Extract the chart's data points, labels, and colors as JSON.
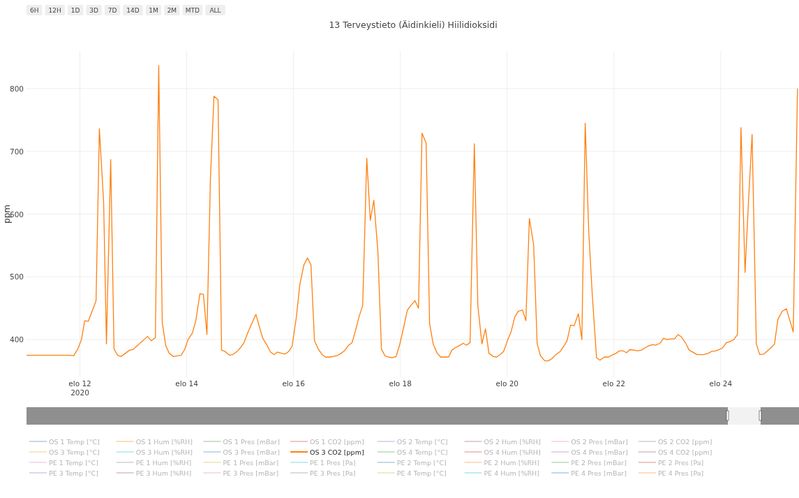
{
  "chart_data": {
    "type": "line",
    "title": "13 Terveystieto (Äidinkieli) Hiilidioksidi",
    "ylabel": "ppm",
    "annotations": [
      "6H",
      "12H",
      "1D",
      "3D",
      "7D",
      "14D",
      "1M",
      "2M",
      "MTD",
      "ALL"
    ],
    "xlim": [
      "2020-08-11T00:00",
      "2020-08-25T11:10"
    ],
    "xticks": [
      {
        "value": "2020-08-12",
        "label": "elo 12\n2020"
      },
      {
        "value": "2020-08-14",
        "label": "elo 14"
      },
      {
        "value": "2020-08-16",
        "label": "elo 16"
      },
      {
        "value": "2020-08-18",
        "label": "elo 18"
      },
      {
        "value": "2020-08-20",
        "label": "elo 20"
      },
      {
        "value": "2020-08-22",
        "label": "elo 22"
      },
      {
        "value": "2020-08-24",
        "label": "elo 24"
      }
    ],
    "ylim": [
      340,
      860
    ],
    "yticks": [
      400,
      500,
      600,
      700,
      800
    ],
    "grid": true,
    "legend": "bottom",
    "line_style": "solid",
    "series": [
      {
        "name": "OS 1 Temp [°C]",
        "color": "#1f77b4"
      },
      {
        "name": "OS 1 Hum [%RH]",
        "color": "#ff7f0e"
      },
      {
        "name": "OS 1 Pres [mBar]",
        "color": "#2ca02c"
      },
      {
        "name": "OS 1 CO2 [ppm]",
        "color": "#d62728"
      },
      {
        "name": "OS 2 Temp [°C]",
        "color": "#9467bd"
      },
      {
        "name": "OS 2 Hum [%RH]",
        "color": "#8c564b"
      },
      {
        "name": "OS 2 Pres [mBar]",
        "color": "#e377c2"
      },
      {
        "name": "OS 2 CO2 [ppm]",
        "color": "#7f7f7f"
      },
      {
        "name": "OS 3 Temp [°C]",
        "color": "#bcbd22"
      },
      {
        "name": "OS 3 Hum [%RH]",
        "color": "#17becf"
      },
      {
        "name": "OS 3 Pres [mBar]",
        "color": "#1f77b4"
      },
      {
        "name": "OS 3 CO2 [ppm]",
        "color": "#ff7f0e",
        "x": [
          "2020-08-11T00:00",
          "2020-08-11T18:20",
          "2020-08-11T19:15",
          "2020-08-11T21:10",
          "2020-08-11T23:05",
          "2020-08-12T00:40",
          "2020-08-12T02:10",
          "2020-08-12T03:45",
          "2020-08-12T05:40",
          "2020-08-12T07:15",
          "2020-08-12T08:45",
          "2020-08-12T10:40",
          "2020-08-12T11:55",
          "2020-08-12T13:50",
          "2020-08-12T15:20",
          "2020-08-12T16:55",
          "2020-08-12T18:30",
          "2020-08-12T20:25",
          "2020-08-12T22:15",
          "2020-08-12T23:50",
          "2020-08-13T01:45",
          "2020-08-13T03:15",
          "2020-08-13T04:50",
          "2020-08-13T06:25",
          "2020-08-13T08:00",
          "2020-08-13T09:55",
          "2020-08-13T11:25",
          "2020-08-13T13:00",
          "2020-08-13T14:35",
          "2020-08-13T16:10",
          "2020-08-13T18:00",
          "2020-08-13T19:55",
          "2020-08-13T21:30",
          "2020-08-13T23:05",
          "2020-08-14T00:35",
          "2020-08-14T02:30",
          "2020-08-14T04:05",
          "2020-08-14T05:55",
          "2020-08-14T07:30",
          "2020-08-14T09:05",
          "2020-08-14T10:40",
          "2020-08-14T12:15",
          "2020-08-14T14:05",
          "2020-08-14T15:40",
          "2020-08-14T17:15",
          "2020-08-14T19:10",
          "2020-08-14T20:40",
          "2020-08-14T22:35",
          "2020-08-15T00:10",
          "2020-08-15T01:45",
          "2020-08-15T03:35",
          "2020-08-15T05:10",
          "2020-08-15T07:05",
          "2020-08-15T08:35",
          "2020-08-15T10:10",
          "2020-08-15T12:05",
          "2020-08-15T13:40",
          "2020-08-15T15:15",
          "2020-08-15T16:45",
          "2020-08-15T18:40",
          "2020-08-15T20:15",
          "2020-08-15T21:50",
          "2020-08-15T23:20",
          "2020-08-16T01:15",
          "2020-08-16T02:50",
          "2020-08-16T04:40",
          "2020-08-16T06:15",
          "2020-08-16T07:50",
          "2020-08-16T09:25",
          "2020-08-16T11:15",
          "2020-08-16T12:50",
          "2020-08-16T14:25",
          "2020-08-16T16:20",
          "2020-08-16T17:50",
          "2020-08-16T19:25",
          "2020-08-16T21:20",
          "2020-08-16T22:55",
          "2020-08-17T00:30",
          "2020-08-17T02:20",
          "2020-08-17T03:55",
          "2020-08-17T05:30",
          "2020-08-17T07:05",
          "2020-08-17T08:55",
          "2020-08-17T10:30",
          "2020-08-17T12:05",
          "2020-08-17T13:55",
          "2020-08-17T15:30",
          "2020-08-17T17:05",
          "2020-08-17T18:40",
          "2020-08-17T20:30",
          "2020-08-17T22:05",
          "2020-08-17T23:40",
          "2020-08-18T01:35",
          "2020-08-18T03:10",
          "2020-08-18T04:40",
          "2020-08-18T06:35",
          "2020-08-18T08:10",
          "2020-08-18T09:45",
          "2020-08-18T11:35",
          "2020-08-18T13:10",
          "2020-08-18T14:45",
          "2020-08-18T16:35",
          "2020-08-18T18:10",
          "2020-08-18T19:45",
          "2020-08-18T21:40",
          "2020-08-18T23:10",
          "2020-08-19T00:45",
          "2020-08-19T02:20",
          "2020-08-19T04:15",
          "2020-08-19T05:45",
          "2020-08-19T07:20",
          "2020-08-19T09:15",
          "2020-08-19T10:50",
          "2020-08-19T12:40",
          "2020-08-19T14:15",
          "2020-08-19T15:50",
          "2020-08-19T17:45",
          "2020-08-19T19:15",
          "2020-08-19T20:50",
          "2020-08-19T22:25",
          "2020-08-20T00:20",
          "2020-08-20T01:50",
          "2020-08-20T03:25",
          "2020-08-20T05:00",
          "2020-08-20T06:55",
          "2020-08-20T08:25",
          "2020-08-20T10:00",
          "2020-08-20T11:55",
          "2020-08-20T13:30",
          "2020-08-20T15:00",
          "2020-08-20T16:55",
          "2020-08-20T18:30",
          "2020-08-20T20:20",
          "2020-08-20T21:55",
          "2020-08-20T23:50",
          "2020-08-21T01:25",
          "2020-08-21T02:55",
          "2020-08-21T04:30",
          "2020-08-21T06:05",
          "2020-08-21T08:00",
          "2020-08-21T09:35",
          "2020-08-21T11:05",
          "2020-08-21T12:40",
          "2020-08-21T14:15",
          "2020-08-21T16:10",
          "2020-08-21T17:45",
          "2020-08-21T19:35",
          "2020-08-21T21:30",
          "2020-08-21T23:00",
          "2020-08-22T00:55",
          "2020-08-22T02:30",
          "2020-08-22T04:05",
          "2020-08-22T05:40",
          "2020-08-22T07:10",
          "2020-08-22T09:05",
          "2020-08-22T10:40",
          "2020-08-22T12:15",
          "2020-08-22T14:05",
          "2020-08-22T15:40",
          "2020-08-22T17:15",
          "2020-08-22T18:50",
          "2020-08-22T20:40",
          "2020-08-22T22:15",
          "2020-08-22T23:50",
          "2020-08-23T01:40",
          "2020-08-23T03:15",
          "2020-08-23T04:50",
          "2020-08-23T06:25",
          "2020-08-23T08:15",
          "2020-08-23T09:50",
          "2020-08-23T11:25",
          "2020-08-23T13:20",
          "2020-08-23T14:55",
          "2020-08-23T16:25",
          "2020-08-23T18:20",
          "2020-08-23T19:55",
          "2020-08-23T21:45",
          "2020-08-23T23:20",
          "2020-08-24T00:55",
          "2020-08-24T02:30",
          "2020-08-24T04:20",
          "2020-08-24T05:55",
          "2020-08-24T07:30",
          "2020-08-24T09:05",
          "2020-08-24T10:55",
          "2020-08-24T12:30",
          "2020-08-24T14:05",
          "2020-08-24T16:00",
          "2020-08-24T17:30",
          "2020-08-24T19:25",
          "2020-08-24T21:00",
          "2020-08-24T22:35",
          "2020-08-25T00:10",
          "2020-08-25T01:40",
          "2020-08-25T03:35",
          "2020-08-25T05:30",
          "2020-08-25T08:35",
          "2020-08-25T10:30"
        ],
        "values": [
          375,
          375,
          375,
          374,
          385,
          400,
          430,
          429,
          447,
          462,
          736,
          618,
          393,
          687,
          385,
          375,
          373,
          378,
          383,
          384,
          390,
          395,
          400,
          405,
          398,
          403,
          837,
          427,
          390,
          378,
          373,
          374,
          375,
          384,
          400,
          410,
          430,
          473,
          472,
          408,
          658,
          788,
          782,
          383,
          381,
          375,
          376,
          381,
          387,
          395,
          412,
          425,
          440,
          421,
          402,
          391,
          380,
          376,
          380,
          378,
          377,
          381,
          389,
          435,
          488,
          519,
          530,
          519,
          398,
          384,
          376,
          372,
          372,
          373,
          374,
          378,
          382,
          390,
          395,
          415,
          437,
          454,
          689,
          590,
          622,
          540,
          385,
          374,
          372,
          371,
          373,
          391,
          421,
          447,
          454,
          462,
          450,
          729,
          713,
          425,
          393,
          378,
          372,
          372,
          372,
          383,
          387,
          390,
          394,
          391,
          395,
          712,
          454,
          393,
          417,
          378,
          373,
          372,
          376,
          381,
          400,
          413,
          436,
          445,
          447,
          430,
          593,
          551,
          393,
          374,
          366,
          366,
          370,
          376,
          381,
          389,
          398,
          423,
          422,
          441,
          400,
          745,
          573,
          472,
          371,
          367,
          372,
          372,
          375,
          378,
          382,
          382,
          379,
          384,
          383,
          382,
          383,
          387,
          390,
          392,
          391,
          394,
          402,
          400,
          401,
          401,
          408,
          404,
          394,
          383,
          380,
          376,
          376,
          376,
          378,
          381,
          382,
          384,
          387,
          395,
          397,
          400,
          408,
          738,
          507,
          622,
          727,
          393,
          376,
          377,
          382,
          387,
          393,
          432,
          445,
          449,
          412,
          800
        ]
      },
      {
        "name": "OS 4 Temp [°C]",
        "color": "#2ca02c"
      },
      {
        "name": "OS 4 Hum [%RH]",
        "color": "#d62728"
      },
      {
        "name": "OS 4 Pres [mBar]",
        "color": "#9467bd"
      },
      {
        "name": "OS 4 CO2 [ppm]",
        "color": "#8c564b"
      },
      {
        "name": "PE 1 Temp [°C]",
        "color": "#e377c2"
      },
      {
        "name": "PE 1 Hum [%RH]",
        "color": "#7f7f7f"
      },
      {
        "name": "PE 1 Pres [mBar]",
        "color": "#bcbd22"
      },
      {
        "name": "PE 1 Pres [Pa]",
        "color": "#17becf"
      },
      {
        "name": "PE 2 Temp [°C]",
        "color": "#1f77b4"
      },
      {
        "name": "PE 2 Hum [%RH]",
        "color": "#ff7f0e"
      },
      {
        "name": "PE 2 Pres [mBar]",
        "color": "#2ca02c"
      },
      {
        "name": "PE 2 Pres [Pa]",
        "color": "#d62728"
      },
      {
        "name": "PE 3 Temp [°C]",
        "color": "#9467bd"
      },
      {
        "name": "PE 3 Hum [%RH]",
        "color": "#8c564b"
      },
      {
        "name": "PE 3 Pres [mBar]",
        "color": "#e377c2"
      },
      {
        "name": "PE 3 Pres [Pa]",
        "color": "#7f7f7f"
      },
      {
        "name": "PE 4 Temp [°C]",
        "color": "#bcbd22"
      },
      {
        "name": "PE 4 Hum [%RH]",
        "color": "#17becf"
      },
      {
        "name": "PE 4 Pres [mBar]",
        "color": "#1f77b4"
      },
      {
        "name": "PE 4 Pres [Pa]",
        "color": "#ff7f0e"
      }
    ]
  }
}
